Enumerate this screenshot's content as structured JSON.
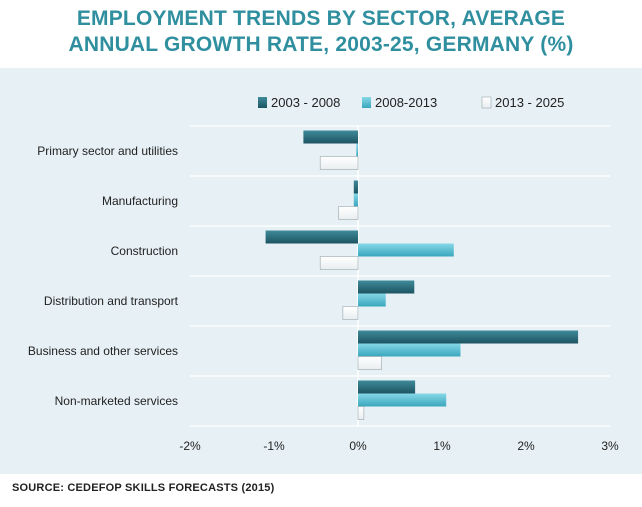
{
  "header": {
    "title_line1": "EMPLOYMENT TRENDS BY SECTOR, AVERAGE",
    "title_line2": "ANNUAL GROWTH RATE, 2003-25, GERMANY (%)"
  },
  "footer": {
    "source": "SOURCE: CEDEFOP SKILLS FORECASTS (2015)"
  },
  "colors": {
    "title": "#2f8f9f",
    "panel_bg": "#e6f0f5",
    "series": [
      "#2c6e7c",
      "#5cbfd2",
      "#ffffff"
    ]
  },
  "chart_data": {
    "type": "bar",
    "orientation": "horizontal",
    "categories": [
      "Primary sector and utilities",
      "Manufacturing",
      "Construction",
      "Distribution and transport",
      "Business and other services",
      "Non-marketed services"
    ],
    "series": [
      {
        "name": "2003 - 2008",
        "values": [
          -0.65,
          -0.05,
          -1.1,
          0.67,
          2.62,
          0.68
        ]
      },
      {
        "name": "2008-2013",
        "values": [
          -0.02,
          -0.05,
          1.14,
          0.33,
          1.22,
          1.05
        ]
      },
      {
        "name": "2013 - 2025",
        "values": [
          -0.45,
          -0.23,
          -0.45,
          -0.18,
          0.28,
          0.07
        ]
      }
    ],
    "xlim": [
      -2,
      3
    ],
    "xticks": [
      -2,
      -1,
      0,
      1,
      2,
      3
    ],
    "xtick_labels": [
      "-2%",
      "-1%",
      "0%",
      "1%",
      "2%",
      "3%"
    ],
    "legend_position": "top",
    "grid": "horizontal category separators"
  }
}
